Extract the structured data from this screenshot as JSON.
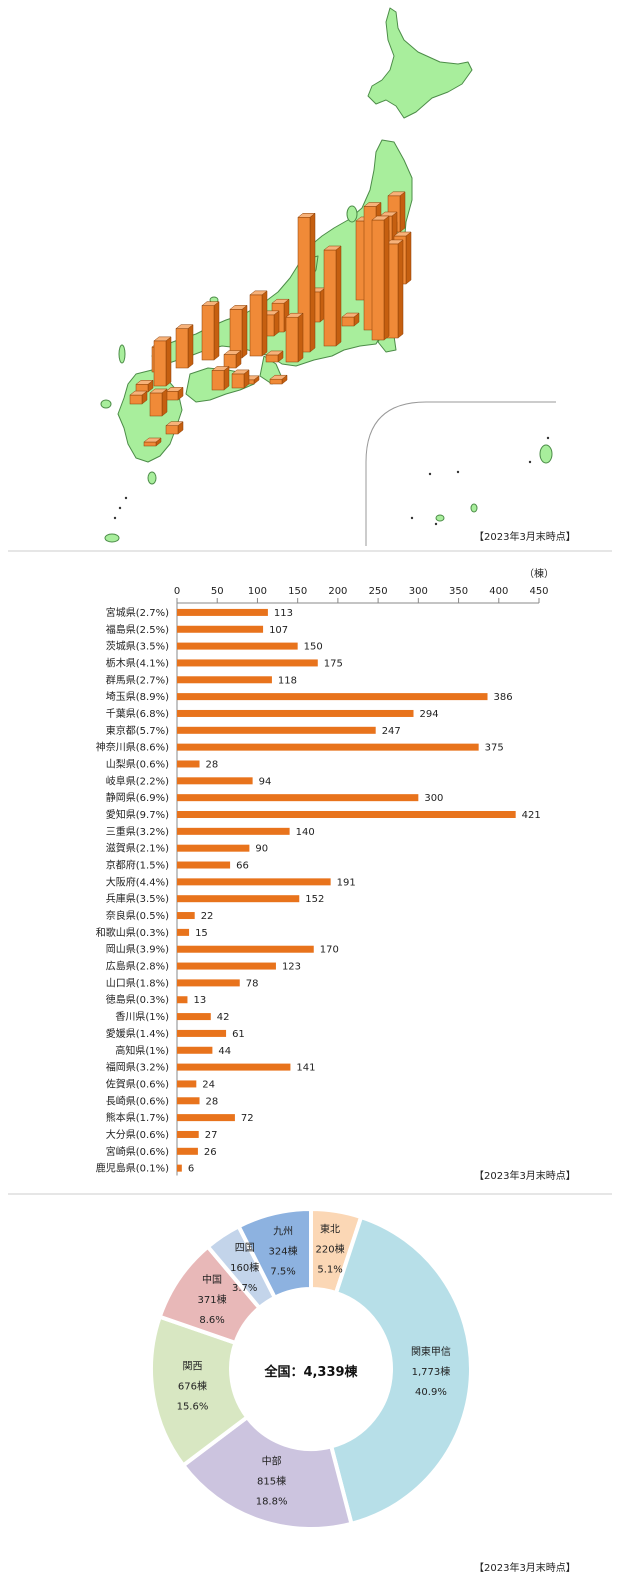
{
  "as_of_labels": [
    "【2023年3月末時点】",
    "【2023年3月末時点】",
    "【2023年3月末時点】"
  ],
  "colors": {
    "bar": "#e8731c",
    "map_land": "#a8ee9c",
    "map_border": "#4c8c48",
    "column_front": "#f08a38",
    "column_side": "#c55f10",
    "column_top": "#f7b27a"
  },
  "chart_data": [
    {
      "type": "map",
      "title": "",
      "note": "Japan map with 3D columns per prefecture (heights show the same counts as the bar chart)"
    },
    {
      "type": "bar",
      "orientation": "horizontal",
      "unit_label": "（棟）",
      "xlim": [
        0,
        450
      ],
      "xticks": [
        0,
        50,
        100,
        150,
        200,
        250,
        300,
        350,
        400,
        450
      ],
      "categories": [
        "宮城県(2.7%)",
        "福島県(2.5%)",
        "茨城県(3.5%)",
        "栃木県(4.1%)",
        "群馬県(2.7%)",
        "埼玉県(8.9%)",
        "千葉県(6.8%)",
        "東京都(5.7%)",
        "神奈川県(8.6%)",
        "山梨県(0.6%)",
        "岐阜県(2.2%)",
        "静岡県(6.9%)",
        "愛知県(9.7%)",
        "三重県(3.2%)",
        "滋賀県(2.1%)",
        "京都府(1.5%)",
        "大阪府(4.4%)",
        "兵庫県(3.5%)",
        "奈良県(0.5%)",
        "和歌山県(0.3%)",
        "岡山県(3.9%)",
        "広島県(2.8%)",
        "山口県(1.8%)",
        "徳島県(0.3%)",
        "香川県(1%)",
        "愛媛県(1.4%)",
        "高知県(1%)",
        "福岡県(3.2%)",
        "佐賀県(0.6%)",
        "長崎県(0.6%)",
        "熊本県(1.7%)",
        "大分県(0.6%)",
        "宮崎県(0.6%)",
        "鹿児島県(0.1%)"
      ],
      "values": [
        113,
        107,
        150,
        175,
        118,
        386,
        294,
        247,
        375,
        28,
        94,
        300,
        421,
        140,
        90,
        66,
        191,
        152,
        22,
        15,
        170,
        123,
        78,
        13,
        42,
        61,
        44,
        141,
        24,
        28,
        72,
        27,
        26,
        6
      ],
      "data_labels": [
        "113",
        "107",
        "150",
        "175",
        "118",
        "386",
        "294",
        "247",
        "375",
        "28",
        "94",
        "300",
        "421",
        "140",
        "90",
        "66",
        "191",
        "152",
        "22",
        "15",
        "170",
        "123",
        "78",
        "13",
        "42",
        "61",
        "44",
        "141",
        "24",
        "28",
        "72",
        "27",
        "26",
        "6"
      ],
      "grid": false,
      "legend": "none"
    },
    {
      "type": "pie",
      "donut": true,
      "center_label": "全国：4,339棟",
      "slices": [
        {
          "name": "東北",
          "count_label": "220棟",
          "share_label": "5.1%",
          "value": 220,
          "percent": 5.1,
          "color": "#fbd7b5"
        },
        {
          "name": "関東甲信",
          "count_label": "1,773棟",
          "share_label": "40.9%",
          "value": 1773,
          "percent": 40.9,
          "color": "#b7dfe8"
        },
        {
          "name": "中部",
          "count_label": "815棟",
          "share_label": "18.8%",
          "value": 815,
          "percent": 18.8,
          "color": "#ccc4df"
        },
        {
          "name": "関西",
          "count_label": "676棟",
          "share_label": "15.6%",
          "value": 676,
          "percent": 15.6,
          "color": "#d8e7c2"
        },
        {
          "name": "中国",
          "count_label": "371棟",
          "share_label": "8.6%",
          "value": 371,
          "percent": 8.6,
          "color": "#e8b8b8"
        },
        {
          "name": "四国",
          "count_label": "160棟",
          "share_label": "3.7%",
          "value": 160,
          "percent": 3.7,
          "color": "#c3d4ea"
        },
        {
          "name": "九州",
          "count_label": "324棟",
          "share_label": "7.5%",
          "value": 324,
          "percent": 7.5,
          "color": "#8db2e0"
        }
      ]
    }
  ]
}
